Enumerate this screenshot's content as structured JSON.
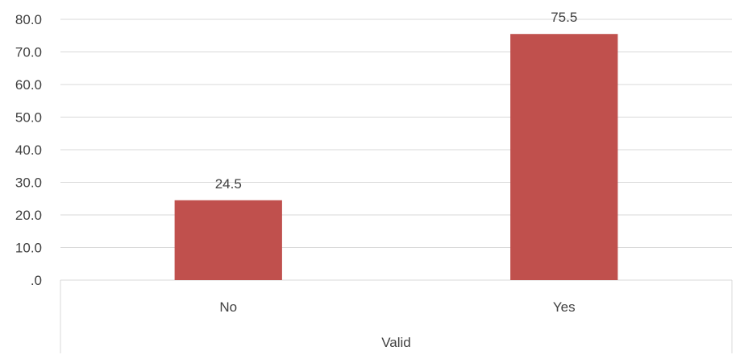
{
  "chart_data": {
    "type": "bar",
    "categories": [
      "No",
      "Yes"
    ],
    "group_label": "Valid",
    "values": [
      24.5,
      75.5
    ],
    "data_labels": [
      "24.5",
      "75.5"
    ],
    "ylim": [
      0,
      80
    ],
    "yticks": [
      ".0",
      "10.0",
      "20.0",
      "30.0",
      "40.0",
      "50.0",
      "60.0",
      "70.0",
      "80.0"
    ],
    "grid": true,
    "legend": "none",
    "colors": {
      "bar": "#c0504d",
      "grid": "#d9d9d9",
      "text": "#404040"
    }
  }
}
